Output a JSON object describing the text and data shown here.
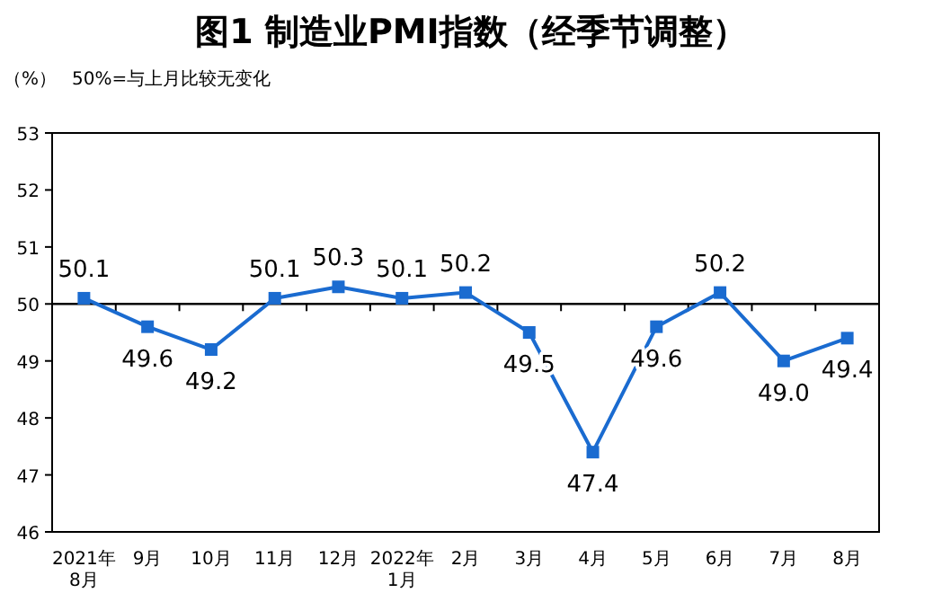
{
  "chart_data": {
    "type": "line",
    "title": "图1 制造业PMI指数（经季节调整）",
    "ylabel": "（%）",
    "annotations": [
      "50%=与上月比较无变化"
    ],
    "categories": [
      "2021年\n8月",
      "9月",
      "10月",
      "11月",
      "12月",
      "2022年\n1月",
      "2月",
      "3月",
      "4月",
      "5月",
      "6月",
      "7月",
      "8月"
    ],
    "series": [
      {
        "color": "#1a6bd0",
        "values": [
          50.1,
          49.6,
          49.2,
          50.1,
          50.3,
          50.1,
          50.2,
          49.5,
          47.4,
          49.6,
          50.2,
          49.0,
          49.4
        ],
        "value_labels": [
          "50.1",
          "49.6",
          "49.2",
          "50.1",
          "50.3",
          "50.1",
          "50.2",
          "49.5",
          "47.4",
          "49.6",
          "50.2",
          "49.0",
          "49.4"
        ]
      }
    ],
    "ylim": [
      46,
      53
    ],
    "yticks": [
      46,
      47,
      48,
      49,
      50,
      51,
      52,
      53
    ],
    "ref_lines": [
      {
        "axis": "y",
        "value": 50,
        "color": "#000000"
      }
    ],
    "marker": "square",
    "line_style": "solid",
    "grid": false
  }
}
